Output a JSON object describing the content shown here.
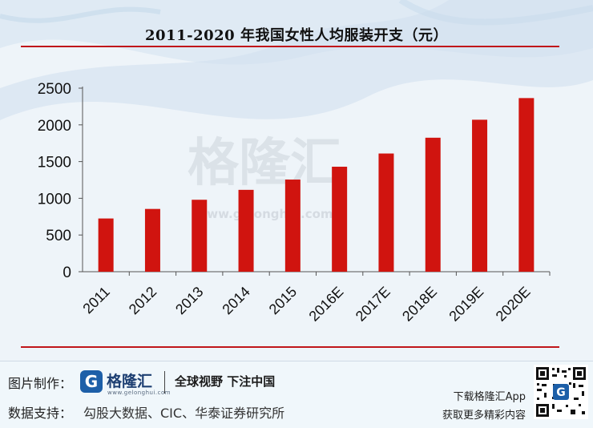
{
  "header": {
    "title": "2011-2020 年我国女性人均服装开支（元）"
  },
  "watermark": {
    "brand": "格隆汇",
    "url": "www.gelonghui.com"
  },
  "chart_data": {
    "type": "bar",
    "title": "2011-2020 年我国女性人均服装开支（元）",
    "xlabel": "",
    "ylabel": "",
    "ylim": [
      0,
      2500
    ],
    "yticks": [
      "0",
      "500",
      "1000",
      "1500",
      "2000",
      "2500"
    ],
    "categories": [
      "2011",
      "2012",
      "2013",
      "2014",
      "2015",
      "2016E",
      "2017E",
      "2018E",
      "2019E",
      "2020E"
    ],
    "values": [
      725,
      855,
      980,
      1115,
      1255,
      1430,
      1610,
      1825,
      2070,
      2365
    ],
    "bar_color": "#d0140f"
  },
  "footer": {
    "made_by_label": "图片制作：",
    "logo_text": "格隆汇",
    "logo_url": "www.gelonghui.com",
    "slogan": "全球视野 下注中国",
    "source_label": "数据支持：",
    "source_text": "勾股大数据、CIC、华泰证券研究所",
    "app_download": "下载格隆汇App",
    "app_more": "获取更多精彩内容"
  }
}
